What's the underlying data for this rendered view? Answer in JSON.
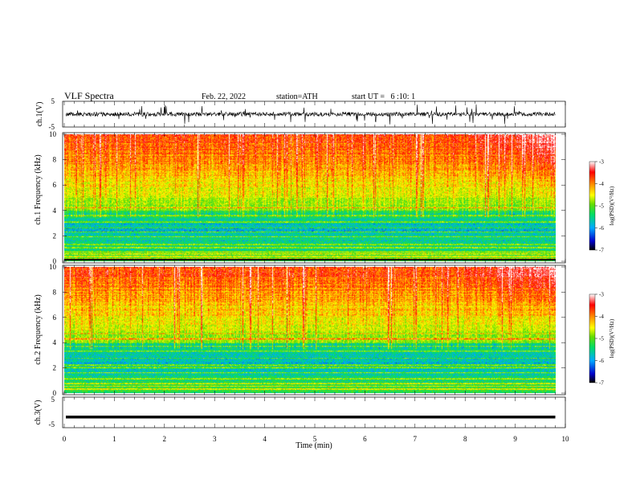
{
  "header": {
    "title": "VLF Spectra",
    "date": "Feb. 22, 2022",
    "station": "station=ATH",
    "start": "start UT =   6 :10: 1"
  },
  "chart_data": [
    {
      "type": "line",
      "panel": "ch1-waveform",
      "ylabel": "ch.1(V)",
      "ylim": [
        -5,
        5
      ],
      "yticks": [
        "5",
        "-5"
      ],
      "xlim": [
        0,
        10
      ],
      "color": "#000000"
    },
    {
      "type": "heatmap",
      "panel": "ch1-spectrogram",
      "ylabel": "ch.1 Frequency (kHz)",
      "ylim": [
        0,
        10
      ],
      "yticks": [
        "0",
        "2",
        "4",
        "6",
        "8",
        "10"
      ],
      "xlim": [
        0,
        10
      ],
      "data_extent_min": 9.8,
      "colorbar": {
        "label": "log(PSD)(V²/Hz)",
        "range": [
          -7,
          -3
        ],
        "ticks": [
          "-3",
          "-4",
          "-5",
          "-6",
          "-7"
        ],
        "colors": [
          "#000000",
          "#0000cc",
          "#00aaff",
          "#00dd66",
          "#66dd00",
          "#ffff00",
          "#ff8800",
          "#ff0000",
          "#ffffff"
        ]
      }
    },
    {
      "type": "heatmap",
      "panel": "ch2-spectrogram",
      "ylabel": "ch.2 Frequency (kHz)",
      "ylim": [
        0,
        10
      ],
      "yticks": [
        "0",
        "2",
        "4",
        "6",
        "8",
        "10"
      ],
      "xlim": [
        0,
        10
      ],
      "data_extent_min": 9.8,
      "colorbar": {
        "label": "log(PSD)(V²/Hz)",
        "range": [
          -7,
          -3
        ],
        "ticks": [
          "-3",
          "-4",
          "-5",
          "-6",
          "-7"
        ]
      }
    },
    {
      "type": "line",
      "panel": "ch3-waveform",
      "ylabel": "ch.3(V)",
      "ylim": [
        -5,
        5
      ],
      "yticks": [
        "5",
        "-5"
      ],
      "xlim": [
        0,
        10
      ],
      "xlabel": "Time (min)",
      "xticks": [
        "0",
        "1",
        "2",
        "3",
        "4",
        "5",
        "6",
        "7",
        "8",
        "9",
        "10"
      ],
      "level": -1.5,
      "color": "#000000"
    }
  ]
}
